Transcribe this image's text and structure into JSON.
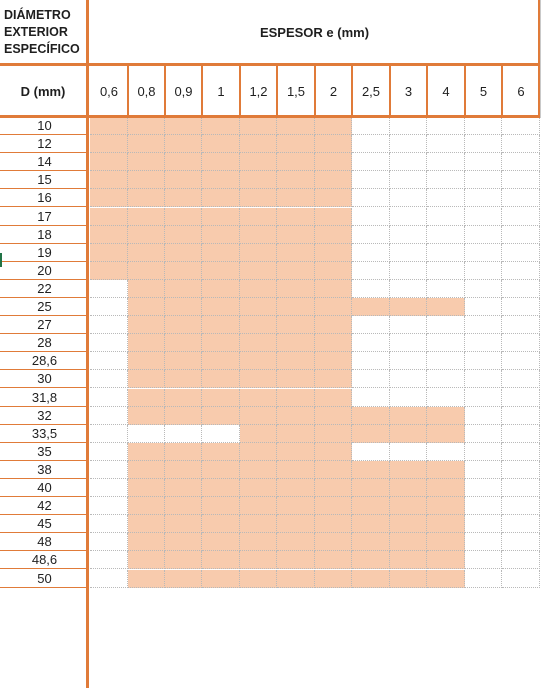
{
  "header": {
    "diameter_lines": [
      "DIÁMETRO",
      "EXTERIOR",
      "ESPECÍFICO"
    ],
    "thickness_title": "ESPESOR e (mm)",
    "d_label": "D (mm)"
  },
  "thicknesses": [
    "0,6",
    "0,8",
    "0,9",
    "1",
    "1,2",
    "1,5",
    "2",
    "2,5",
    "3",
    "4",
    "5",
    "6"
  ],
  "rows": [
    {
      "d": "10",
      "available": [
        1,
        1,
        1,
        1,
        1,
        1,
        1,
        0,
        0,
        0,
        0,
        0
      ]
    },
    {
      "d": "12",
      "available": [
        1,
        1,
        1,
        1,
        1,
        1,
        1,
        0,
        0,
        0,
        0,
        0
      ]
    },
    {
      "d": "14",
      "available": [
        1,
        1,
        1,
        1,
        1,
        1,
        1,
        0,
        0,
        0,
        0,
        0
      ]
    },
    {
      "d": "15",
      "available": [
        1,
        1,
        1,
        1,
        1,
        1,
        1,
        0,
        0,
        0,
        0,
        0
      ]
    },
    {
      "d": "16",
      "available": [
        1,
        1,
        1,
        1,
        1,
        1,
        1,
        0,
        0,
        0,
        0,
        0
      ]
    },
    {
      "d": "17",
      "available": [
        1,
        1,
        1,
        1,
        1,
        1,
        1,
        0,
        0,
        0,
        0,
        0
      ]
    },
    {
      "d": "18",
      "available": [
        1,
        1,
        1,
        1,
        1,
        1,
        1,
        0,
        0,
        0,
        0,
        0
      ]
    },
    {
      "d": "19",
      "available": [
        1,
        1,
        1,
        1,
        1,
        1,
        1,
        0,
        0,
        0,
        0,
        0
      ]
    },
    {
      "d": "20",
      "available": [
        1,
        1,
        1,
        1,
        1,
        1,
        1,
        0,
        0,
        0,
        0,
        0
      ]
    },
    {
      "d": "22",
      "available": [
        0,
        1,
        1,
        1,
        1,
        1,
        1,
        0,
        0,
        0,
        0,
        0
      ]
    },
    {
      "d": "25",
      "available": [
        0,
        1,
        1,
        1,
        1,
        1,
        1,
        1,
        1,
        1,
        0,
        0
      ]
    },
    {
      "d": "27",
      "available": [
        0,
        1,
        1,
        1,
        1,
        1,
        1,
        0,
        0,
        0,
        0,
        0
      ]
    },
    {
      "d": "28",
      "available": [
        0,
        1,
        1,
        1,
        1,
        1,
        1,
        0,
        0,
        0,
        0,
        0
      ]
    },
    {
      "d": "28,6",
      "available": [
        0,
        1,
        1,
        1,
        1,
        1,
        1,
        0,
        0,
        0,
        0,
        0
      ]
    },
    {
      "d": "30",
      "available": [
        0,
        1,
        1,
        1,
        1,
        1,
        1,
        0,
        0,
        0,
        0,
        0
      ]
    },
    {
      "d": "31,8",
      "available": [
        0,
        1,
        1,
        1,
        1,
        1,
        1,
        0,
        0,
        0,
        0,
        0
      ]
    },
    {
      "d": "32",
      "available": [
        0,
        1,
        1,
        1,
        1,
        1,
        1,
        1,
        1,
        1,
        0,
        0
      ]
    },
    {
      "d": "33,5",
      "available": [
        0,
        0,
        0,
        0,
        1,
        1,
        1,
        1,
        1,
        1,
        0,
        0
      ]
    },
    {
      "d": "35",
      "available": [
        0,
        1,
        1,
        1,
        1,
        1,
        1,
        0,
        0,
        0,
        0,
        0
      ]
    },
    {
      "d": "38",
      "available": [
        0,
        1,
        1,
        1,
        1,
        1,
        1,
        1,
        1,
        1,
        0,
        0
      ]
    },
    {
      "d": "40",
      "available": [
        0,
        1,
        1,
        1,
        1,
        1,
        1,
        1,
        1,
        1,
        0,
        0
      ]
    },
    {
      "d": "42",
      "available": [
        0,
        1,
        1,
        1,
        1,
        1,
        1,
        1,
        1,
        1,
        0,
        0
      ]
    },
    {
      "d": "45",
      "available": [
        0,
        1,
        1,
        1,
        1,
        1,
        1,
        1,
        1,
        1,
        0,
        0
      ]
    },
    {
      "d": "48",
      "available": [
        0,
        1,
        1,
        1,
        1,
        1,
        1,
        1,
        1,
        1,
        0,
        0
      ]
    },
    {
      "d": "48,6",
      "available": [
        0,
        1,
        1,
        1,
        1,
        1,
        1,
        1,
        1,
        1,
        0,
        0
      ]
    },
    {
      "d": "50",
      "available": [
        0,
        1,
        1,
        1,
        1,
        1,
        1,
        1,
        1,
        1,
        0,
        0
      ]
    }
  ],
  "colors": {
    "available_fill": "#f8cbad",
    "border_accent": "#e07b39",
    "cell_grid": "#b9b9b9"
  }
}
